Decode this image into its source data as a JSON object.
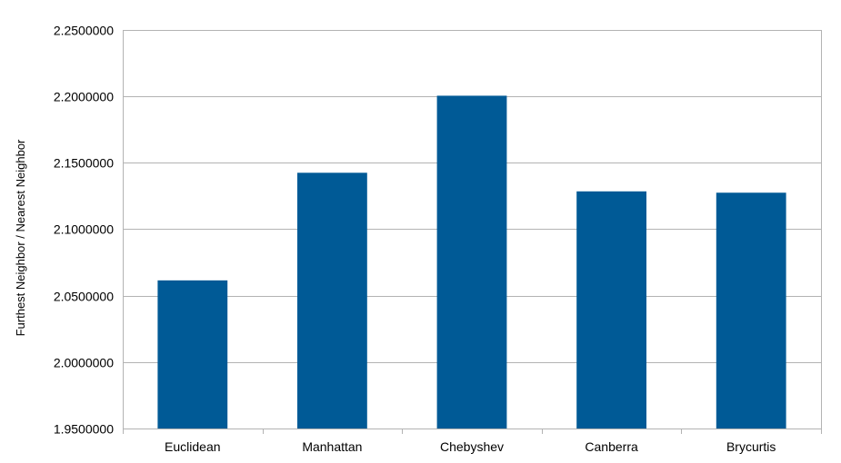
{
  "chart_data": {
    "type": "bar",
    "title": "",
    "xlabel": "",
    "ylabel": "Furthest Neighbor / Nearest Neighbor",
    "categories": [
      "Euclidean",
      "Manhattan",
      "Chebyshev",
      "Canberra",
      "Brycurtis"
    ],
    "values": [
      2.0615,
      2.1425,
      2.2005,
      2.1285,
      2.1275
    ],
    "ylim": [
      1.95,
      2.25
    ],
    "yticks": [
      1.95,
      2.0,
      2.05,
      2.1,
      2.15,
      2.2,
      2.25
    ],
    "ytick_labels": [
      "1.9500000",
      "2.0000000",
      "2.0500000",
      "2.1000000",
      "2.1500000",
      "2.2000000",
      "2.2500000"
    ],
    "grid": true,
    "legend": "none",
    "colors": {
      "bar": "#005A96",
      "grid": "#B3B3B3",
      "axis": "#B3B3B3"
    }
  }
}
